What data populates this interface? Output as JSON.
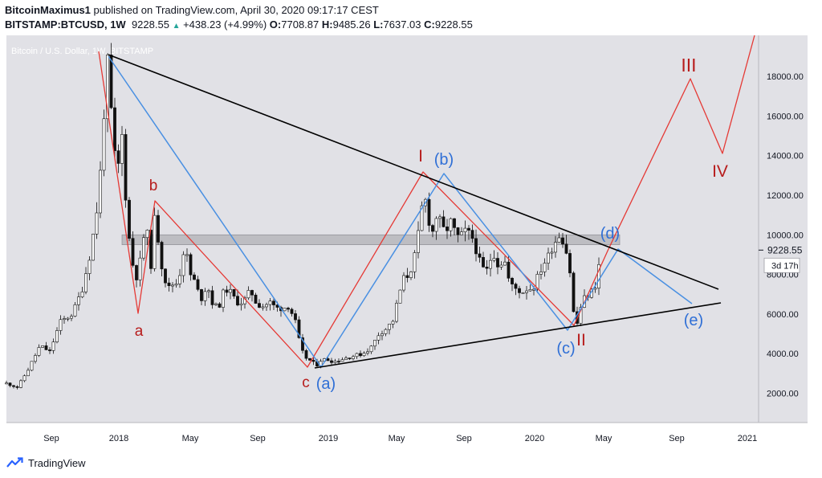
{
  "header": {
    "author": "BitcoinMaximus1",
    "published": " published on TradingView.com, April 30, 2020 09:17:17 CEST",
    "symbol": "BITSTAMP:BTCUSD, 1W",
    "last": "9228.55",
    "change_arrow": "▲",
    "change": "+438.23 (+4.99%)",
    "o_label": "O:",
    "o_value": "7708.87",
    "h_label": "H:",
    "h_value": "9485.26",
    "l_label": "L:",
    "l_value": "7637.03",
    "c_label": "C:",
    "c_value": "9228.55"
  },
  "chart_data": {
    "type": "candlestick",
    "title": "Bitcoin / U.S. Dollar, 1W, BITSTAMP",
    "ylim": [
      800,
      19800
    ],
    "y_ticks": [
      "2000.00",
      "4000.00",
      "6000.00",
      "8000.00",
      "10000.00",
      "12000.00",
      "14000.00",
      "16000.00",
      "18000.00"
    ],
    "x_ticks": [
      "Sep",
      "2018",
      "May",
      "Sep",
      "2019",
      "May",
      "Sep",
      "2020",
      "May",
      "Sep",
      "2021"
    ],
    "price_label": "9228.55",
    "countdown": "3d 17h",
    "resistance_zone": [
      9500,
      10000
    ],
    "wave_labels": {
      "red": [
        "a",
        "b",
        "c",
        "I",
        "II",
        "III",
        "IV"
      ],
      "blue": [
        "(a)",
        "(b)",
        "(c)",
        "(d)",
        "(e)"
      ]
    },
    "colors": {
      "red_wave": "#e53935",
      "red_text": "#b71c1c",
      "blue_wave": "#4a90e2",
      "blue_text": "#2f6fd6",
      "trendline": "#000000",
      "background": "#e1e1e6",
      "zone": "#b0b0b6"
    }
  },
  "footer": {
    "brand": "TradingView"
  }
}
